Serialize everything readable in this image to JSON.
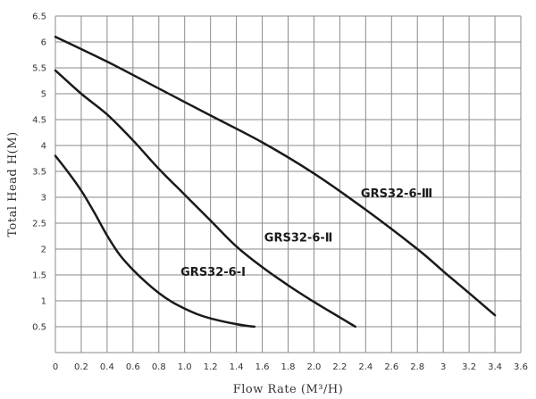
{
  "chart_data": {
    "type": "line",
    "xlabel": "Flow Rate (M³/H)",
    "ylabel": "Total Head H(M)",
    "xlim": [
      0,
      3.6
    ],
    "ylim": [
      0,
      6.5
    ],
    "x_ticks": [
      "0",
      "0.2",
      "0.4",
      "0.6",
      "0.8",
      "1.0",
      "1.2",
      "1.4",
      "1.6",
      "1.8",
      "2.0",
      "2.2",
      "2.4",
      "2.6",
      "2.8",
      "3",
      "3.2",
      "3.4",
      "3.6"
    ],
    "y_ticks": [
      "0.5",
      "1",
      "1.5",
      "2",
      "2.5",
      "3",
      "3.5",
      "4",
      "4.5",
      "5",
      "5.5",
      "6",
      "6.5"
    ],
    "grid": true,
    "series": [
      {
        "name": "GRS32-6-Ⅰ",
        "x": [
          0,
          0.1,
          0.2,
          0.3,
          0.4,
          0.5,
          0.6,
          0.7,
          0.8,
          0.9,
          1.0,
          1.1,
          1.2,
          1.3,
          1.4,
          1.5,
          1.54
        ],
        "y": [
          3.8,
          3.48,
          3.13,
          2.71,
          2.26,
          1.88,
          1.6,
          1.36,
          1.15,
          0.98,
          0.85,
          0.74,
          0.66,
          0.6,
          0.55,
          0.51,
          0.5
        ]
      },
      {
        "name": "GRS32-6-Ⅱ",
        "x": [
          0,
          0.2,
          0.4,
          0.6,
          0.8,
          1.0,
          1.2,
          1.4,
          1.6,
          1.8,
          2.0,
          2.2,
          2.32
        ],
        "y": [
          5.45,
          5.0,
          4.6,
          4.1,
          3.55,
          3.05,
          2.55,
          2.05,
          1.65,
          1.3,
          0.98,
          0.68,
          0.5
        ]
      },
      {
        "name": "GRS32-6-Ⅲ",
        "x": [
          0,
          0.4,
          0.8,
          1.2,
          1.6,
          2.0,
          2.4,
          2.8,
          3.0,
          3.2,
          3.4
        ],
        "y": [
          6.1,
          5.62,
          5.1,
          4.58,
          4.06,
          3.46,
          2.76,
          2.0,
          1.57,
          1.15,
          0.72
        ]
      }
    ],
    "series_labels": [
      {
        "text": "GRS32-6-Ⅰ",
        "x": 1.22,
        "y": 1.48
      },
      {
        "text": "GRS32-6-Ⅱ",
        "x": 1.88,
        "y": 2.15
      },
      {
        "text": "GRS32-6-Ⅲ",
        "x": 2.64,
        "y": 3.0
      }
    ]
  }
}
